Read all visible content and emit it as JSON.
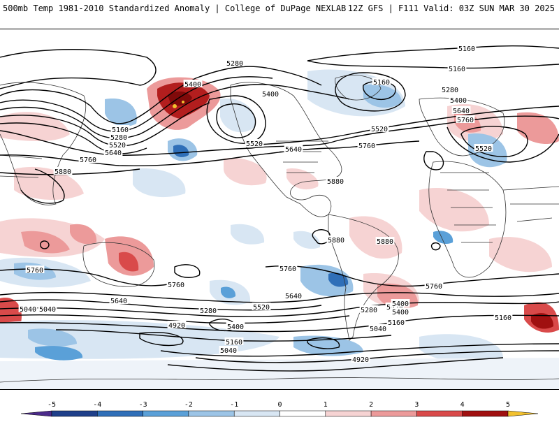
{
  "header": {
    "left_title": "500mb Temp 1981-2010 Standardized Anomaly | College of DuPage NEXLAB",
    "right_title": "12Z GFS | F111 Valid: 03Z SUN MAR 30 2025"
  },
  "colorbar": {
    "ticks": [
      "-5",
      "-4",
      "-3",
      "-2",
      "-1",
      "0",
      "1",
      "2",
      "3",
      "4",
      "5"
    ],
    "colors": [
      "#4b2a8a",
      "#1f3f8a",
      "#2f6fb8",
      "#5aa0d8",
      "#9cc4e6",
      "#d8e6f3",
      "#ffffff",
      "#f6d3d3",
      "#ec9a9a",
      "#d94a4a",
      "#a01010",
      "#700000",
      "#f2c12e"
    ]
  },
  "contour_labels": [
    {
      "text": "5160"
    },
    {
      "text": "5160"
    },
    {
      "text": "5280"
    },
    {
      "text": "5400"
    },
    {
      "text": "5400"
    },
    {
      "text": "5160"
    },
    {
      "text": "5280"
    },
    {
      "text": "5400"
    },
    {
      "text": "5640"
    },
    {
      "text": "5760"
    },
    {
      "text": "5520"
    },
    {
      "text": "5520"
    },
    {
      "text": "5640"
    },
    {
      "text": "5760"
    },
    {
      "text": "5520"
    },
    {
      "text": "5160"
    },
    {
      "text": "5280"
    },
    {
      "text": "5520"
    },
    {
      "text": "5640"
    },
    {
      "text": "5760"
    },
    {
      "text": "5880"
    },
    {
      "text": "5880"
    },
    {
      "text": "5880"
    },
    {
      "text": "5880"
    },
    {
      "text": "5760"
    },
    {
      "text": "5760"
    },
    {
      "text": "5760"
    },
    {
      "text": "5760"
    },
    {
      "text": "5640"
    },
    {
      "text": "5520"
    },
    {
      "text": "5640"
    },
    {
      "text": "5520"
    },
    {
      "text": "5400"
    },
    {
      "text": "5280"
    },
    {
      "text": "5160"
    },
    {
      "text": "5040"
    },
    {
      "text": "4920"
    },
    {
      "text": "5400"
    },
    {
      "text": "5040"
    },
    {
      "text": "5400"
    },
    {
      "text": "5280"
    },
    {
      "text": "5160"
    },
    {
      "text": "5040"
    },
    {
      "text": "4920"
    },
    {
      "text": "5160"
    },
    {
      "text": "5040"
    }
  ]
}
